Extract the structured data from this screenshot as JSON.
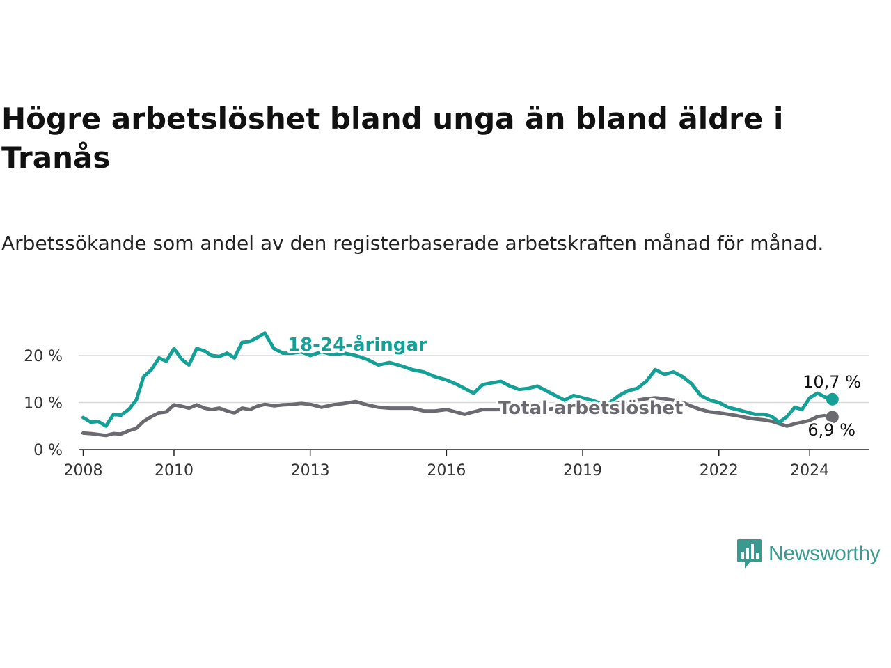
{
  "title": "Högre arbetslöshet bland unga än bland äldre i Tranås",
  "subtitle": "Arbetssökande som andel av den registerbaserade arbetskraften månad för månad.",
  "brand": {
    "name": "Newsworthy",
    "color": "#3a9a90",
    "icon": "newsworthy-chart-bubble-icon"
  },
  "chart_data": {
    "type": "line",
    "xlim": [
      2007.9,
      2025.3
    ],
    "ylim": [
      0,
      20
    ],
    "y_ticks": [
      {
        "value": 0,
        "label": "0 %"
      },
      {
        "value": 10,
        "label": "10 %"
      },
      {
        "value": 20,
        "label": "20 %"
      }
    ],
    "x_ticks": [
      {
        "value": 2008,
        "label": "2008"
      },
      {
        "value": 2010,
        "label": "2010"
      },
      {
        "value": 2013,
        "label": "2013"
      },
      {
        "value": 2016,
        "label": "2016"
      },
      {
        "value": 2019,
        "label": "2019"
      },
      {
        "value": 2022,
        "label": "2022"
      },
      {
        "value": 2024,
        "label": "2024"
      }
    ],
    "grid": "horizontal",
    "series": [
      {
        "name": "18-24-åringar",
        "color": "#14a096",
        "end_label": "10,7 %",
        "x": [
          2008.0,
          2008.17,
          2008.33,
          2008.5,
          2008.67,
          2008.83,
          2009.0,
          2009.17,
          2009.33,
          2009.5,
          2009.67,
          2009.83,
          2010.0,
          2010.17,
          2010.33,
          2010.5,
          2010.67,
          2010.83,
          2011.0,
          2011.17,
          2011.33,
          2011.5,
          2011.67,
          2011.83,
          2012.0,
          2012.2,
          2012.4,
          2012.6,
          2012.8,
          2013.0,
          2013.25,
          2013.5,
          2013.75,
          2014.0,
          2014.25,
          2014.5,
          2014.75,
          2015.0,
          2015.25,
          2015.5,
          2015.75,
          2016.0,
          2016.2,
          2016.4,
          2016.6,
          2016.8,
          2017.0,
          2017.2,
          2017.4,
          2017.6,
          2017.8,
          2018.0,
          2018.2,
          2018.4,
          2018.6,
          2018.8,
          2019.0,
          2019.2,
          2019.4,
          2019.6,
          2019.8,
          2020.0,
          2020.2,
          2020.4,
          2020.6,
          2020.8,
          2021.0,
          2021.2,
          2021.4,
          2021.6,
          2021.8,
          2022.0,
          2022.2,
          2022.4,
          2022.6,
          2022.8,
          2023.0,
          2023.17,
          2023.33,
          2023.5,
          2023.67,
          2023.83,
          2024.0,
          2024.17,
          2024.33,
          2024.5
        ],
        "y": [
          6.8,
          5.8,
          6.0,
          5.0,
          7.5,
          7.3,
          8.5,
          10.5,
          15.5,
          17.0,
          19.5,
          18.8,
          21.5,
          19.2,
          18.0,
          21.5,
          21.0,
          20.0,
          19.8,
          20.5,
          19.5,
          22.8,
          23.0,
          23.8,
          24.8,
          21.5,
          20.5,
          20.5,
          20.8,
          20.0,
          20.8,
          20.2,
          20.5,
          20.0,
          19.2,
          18.0,
          18.5,
          17.8,
          17.0,
          16.5,
          15.5,
          14.8,
          14.0,
          13.0,
          12.0,
          13.8,
          14.2,
          14.5,
          13.5,
          12.8,
          13.0,
          13.5,
          12.5,
          11.5,
          10.5,
          11.5,
          11.0,
          10.5,
          9.8,
          10.0,
          11.5,
          12.5,
          13.0,
          14.5,
          17.0,
          16.0,
          16.5,
          15.5,
          14.0,
          11.5,
          10.5,
          10.0,
          9.0,
          8.5,
          8.0,
          7.5,
          7.5,
          7.0,
          5.8,
          7.0,
          9.0,
          8.5,
          11.0,
          12.0,
          11.2,
          10.7
        ]
      },
      {
        "name": "Total arbetslöshet",
        "color": "#6b6a70",
        "end_label": "6,9 %",
        "x": [
          2008.0,
          2008.17,
          2008.33,
          2008.5,
          2008.67,
          2008.83,
          2009.0,
          2009.17,
          2009.33,
          2009.5,
          2009.67,
          2009.83,
          2010.0,
          2010.17,
          2010.33,
          2010.5,
          2010.67,
          2010.83,
          2011.0,
          2011.17,
          2011.33,
          2011.5,
          2011.67,
          2011.83,
          2012.0,
          2012.2,
          2012.4,
          2012.6,
          2012.8,
          2013.0,
          2013.25,
          2013.5,
          2013.75,
          2014.0,
          2014.25,
          2014.5,
          2014.75,
          2015.0,
          2015.25,
          2015.5,
          2015.75,
          2016.0,
          2016.2,
          2016.4,
          2016.6,
          2016.8,
          2017.0,
          2017.2,
          2017.4,
          2017.6,
          2017.8,
          2018.0,
          2018.2,
          2018.4,
          2018.6,
          2018.8,
          2019.0,
          2019.2,
          2019.4,
          2019.6,
          2019.8,
          2020.0,
          2020.2,
          2020.4,
          2020.6,
          2020.8,
          2021.0,
          2021.2,
          2021.4,
          2021.6,
          2021.8,
          2022.0,
          2022.2,
          2022.4,
          2022.6,
          2022.8,
          2023.0,
          2023.17,
          2023.33,
          2023.5,
          2023.67,
          2023.83,
          2024.0,
          2024.17,
          2024.33,
          2024.5
        ],
        "y": [
          3.5,
          3.4,
          3.2,
          3.0,
          3.4,
          3.3,
          4.0,
          4.5,
          6.0,
          7.0,
          7.8,
          8.0,
          9.5,
          9.2,
          8.8,
          9.5,
          8.8,
          8.5,
          8.8,
          8.2,
          7.8,
          8.8,
          8.5,
          9.2,
          9.6,
          9.3,
          9.5,
          9.6,
          9.8,
          9.6,
          9.0,
          9.5,
          9.8,
          10.2,
          9.5,
          9.0,
          8.8,
          8.8,
          8.8,
          8.2,
          8.2,
          8.5,
          8.0,
          7.5,
          8.0,
          8.5,
          8.5,
          8.5,
          8.5,
          8.6,
          8.5,
          8.8,
          8.5,
          8.8,
          9.0,
          9.2,
          9.0,
          9.3,
          9.5,
          9.8,
          10.0,
          10.2,
          10.5,
          10.8,
          11.0,
          10.8,
          10.5,
          10.0,
          9.2,
          8.5,
          8.0,
          7.8,
          7.5,
          7.2,
          6.8,
          6.5,
          6.3,
          6.0,
          5.5,
          5.0,
          5.5,
          5.8,
          6.2,
          7.0,
          7.2,
          6.9
        ]
      }
    ]
  }
}
